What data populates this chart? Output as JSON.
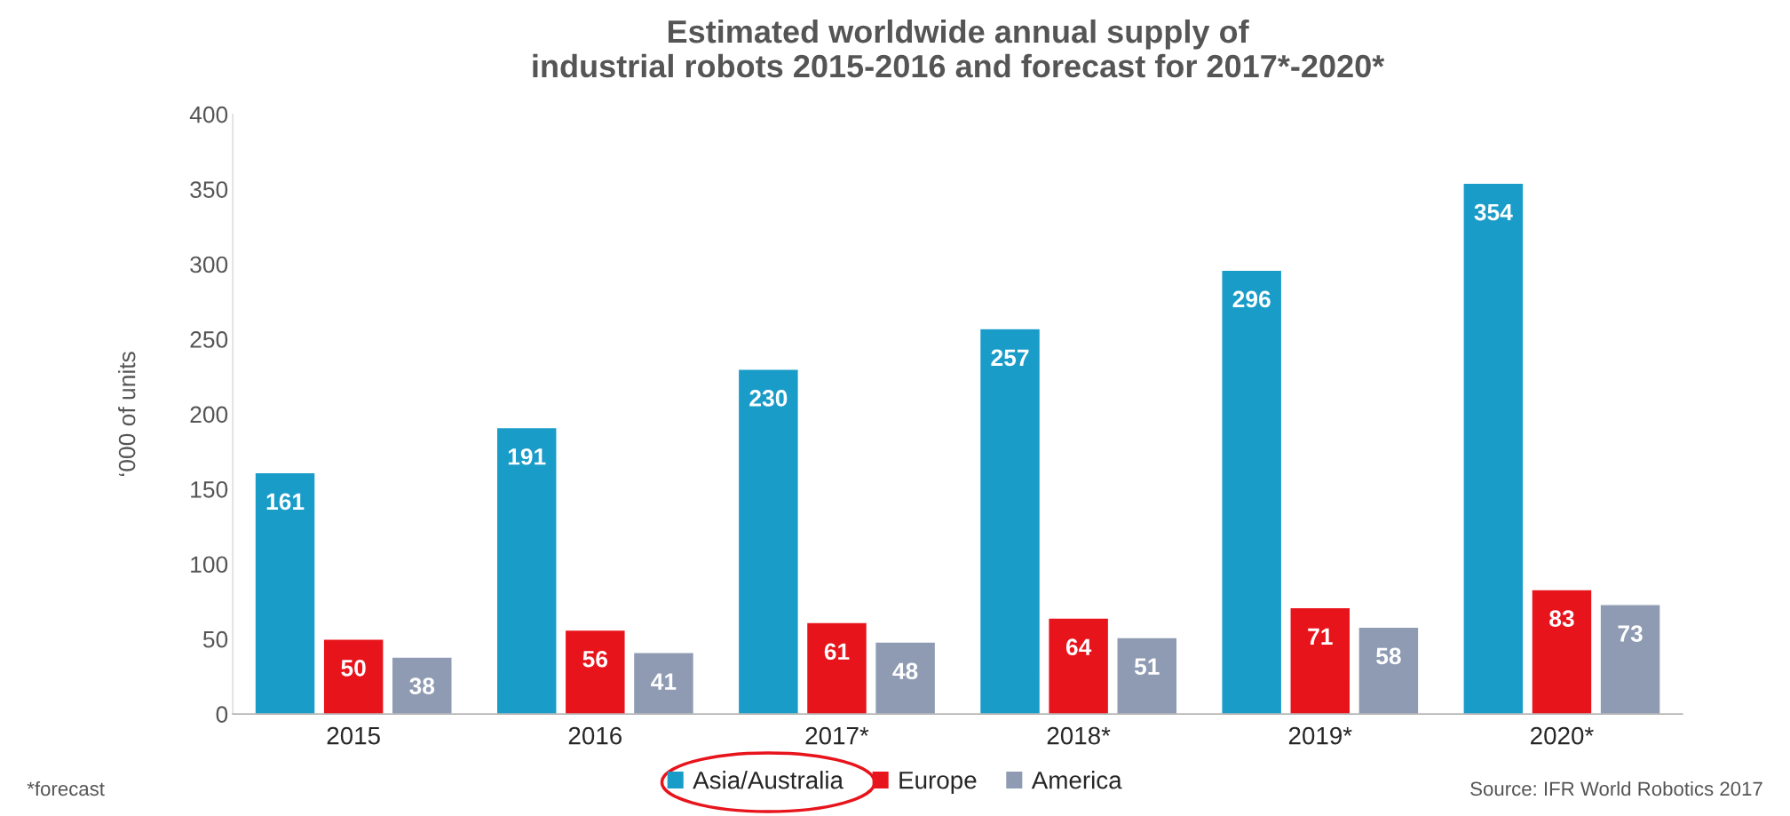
{
  "chart_data": {
    "type": "bar",
    "title": "Estimated worldwide annual supply of\nindustrial robots 2015-2016 and forecast for 2017*-2020*",
    "categories": [
      "2015",
      "2016",
      "2017*",
      "2018*",
      "2019*",
      "2020*"
    ],
    "series": [
      {
        "name": "Asia/Australia",
        "color": "#1a9cc9",
        "values": [
          161,
          191,
          230,
          257,
          296,
          354
        ]
      },
      {
        "name": "Europe",
        "color": "#e8141c",
        "values": [
          50,
          56,
          61,
          64,
          71,
          83
        ]
      },
      {
        "name": "America",
        "color": "#8e9bb3",
        "values": [
          38,
          41,
          48,
          51,
          58,
          73
        ]
      }
    ],
    "ylabel": "‘000 of units",
    "ylim": [
      0,
      400
    ],
    "yticks": [
      0,
      50,
      100,
      150,
      200,
      250,
      300,
      350,
      400
    ],
    "data_labels": true,
    "legend": "bottom",
    "grid": false,
    "annotations": [
      "*forecast",
      "Source: IFR World Robotics 2017"
    ]
  }
}
